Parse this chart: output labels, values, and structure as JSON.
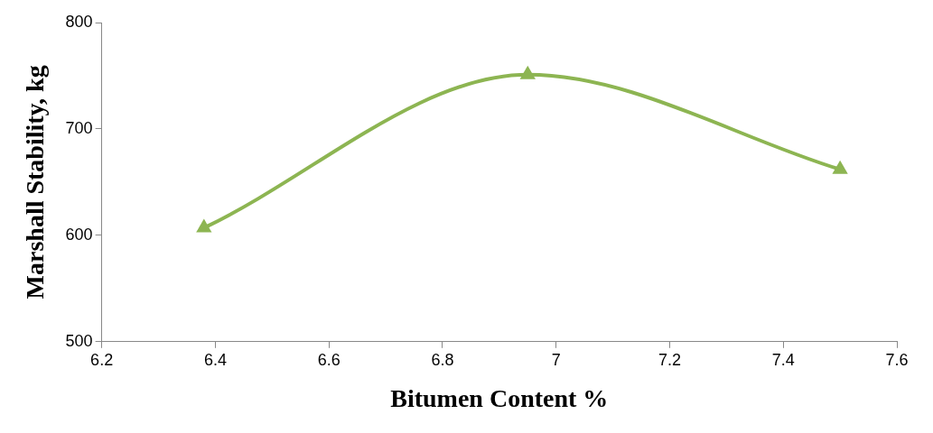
{
  "chart_data": {
    "type": "line",
    "xlabel": "Bitumen Content %",
    "ylabel": "Marshall Stability, kg",
    "x": [
      6.38,
      6.95,
      7.5
    ],
    "series": [
      {
        "color": "#8db552",
        "values": [
          607,
          751,
          662
        ]
      }
    ],
    "xlim": [
      6.2,
      7.6
    ],
    "xticks": [
      {
        "value": 6.2,
        "label": "6.2"
      },
      {
        "value": 6.4,
        "label": "6.4"
      },
      {
        "value": 6.6,
        "label": "6.6"
      },
      {
        "value": 6.8,
        "label": "6.8"
      },
      {
        "value": 7,
        "label": "7"
      },
      {
        "value": 7.2,
        "label": "7.2"
      },
      {
        "value": 7.4,
        "label": "7.4"
      },
      {
        "value": 7.6,
        "label": "7.6"
      }
    ],
    "ylim": [
      500,
      800
    ],
    "yticks": [
      500,
      600,
      700,
      800
    ],
    "grid": false,
    "legend": false,
    "marker": "triangle",
    "line_style": "solid"
  }
}
